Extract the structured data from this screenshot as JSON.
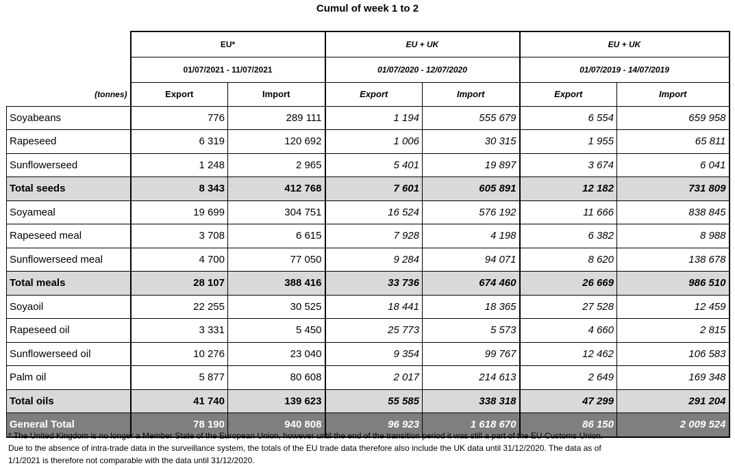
{
  "title": "Cumul of week 1 to 2",
  "unit_label": "(tonnes)",
  "groups": [
    {
      "name": "EU*",
      "period": "01/07/2021 - 11/07/2021"
    },
    {
      "name": "EU + UK",
      "period": "01/07/2020 - 12/07/2020"
    },
    {
      "name": "EU + UK",
      "period": "01/07/2019 - 14/07/2019"
    }
  ],
  "col_headers": [
    "Export",
    "Import",
    "Export",
    "Import",
    "Export",
    "Import"
  ],
  "rows": [
    {
      "name": "Soyabeans",
      "values": [
        "776",
        "289 111",
        "1 194",
        "555 679",
        "6 554",
        "659 958"
      ]
    },
    {
      "name": "Rapeseed",
      "values": [
        "6 319",
        "120 692",
        "1 006",
        "30 315",
        "1 955",
        "65 811"
      ]
    },
    {
      "name": "Sunflowerseed",
      "values": [
        "1 248",
        "2 965",
        "5 401",
        "19 897",
        "3 674",
        "6 041"
      ]
    },
    {
      "name": "Total seeds",
      "values": [
        "8 343",
        "412 768",
        "7 601",
        "605 891",
        "12 182",
        "731 809"
      ]
    },
    {
      "name": "Soyameal",
      "values": [
        "19 699",
        "304 751",
        "16 524",
        "576 192",
        "11 666",
        "838 845"
      ]
    },
    {
      "name": "Rapeseed meal",
      "values": [
        "3 708",
        "6 615",
        "7 928",
        "4 198",
        "6 382",
        "8 988"
      ]
    },
    {
      "name": "Sunflowerseed meal",
      "values": [
        "4 700",
        "77 050",
        "9 284",
        "94 071",
        "8 620",
        "138 678"
      ]
    },
    {
      "name": "Total meals",
      "values": [
        "28 107",
        "388 416",
        "33 736",
        "674 460",
        "26 669",
        "986 510"
      ]
    },
    {
      "name": "Soyaoil",
      "values": [
        "22 255",
        "30 525",
        "18 441",
        "18 365",
        "27 528",
        "12 459"
      ]
    },
    {
      "name": "Rapeseed oil",
      "values": [
        "3 331",
        "5 450",
        "25 773",
        "5 573",
        "4 660",
        "2 815"
      ]
    },
    {
      "name": "Sunflowerseed oil",
      "values": [
        "10 276",
        "23 040",
        "9 354",
        "99 767",
        "12 462",
        "106 583"
      ]
    },
    {
      "name": "Palm oil",
      "values": [
        "5 877",
        "80 608",
        "2 017",
        "214 613",
        "2 649",
        "169 348"
      ]
    },
    {
      "name": "Total oils",
      "values": [
        "41 740",
        "139 623",
        "55 585",
        "338 318",
        "47 299",
        "291 204"
      ]
    },
    {
      "name": "General Total",
      "values": [
        "78 190",
        "940 808",
        "96 923",
        "1 618 670",
        "86 150",
        "2 009 524"
      ]
    }
  ],
  "footnote_lines": [
    "* The United Kingdom is no longer a Member State of the European Union, however until the end of the transition period it was still a part of the EU Customs Union.",
    "Due to the absence of intra-trade data in the surveillance system, the totals of the EU trade data  therefore also include the UK data until 31/12/2020. The data as of",
    "1/1/2021 is therefore not comparable with the data until 31/12/2020."
  ]
}
